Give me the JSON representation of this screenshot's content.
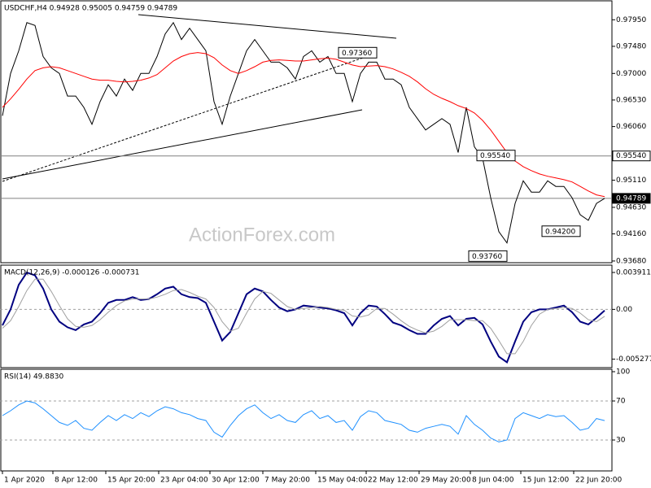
{
  "chart_data": [
    {
      "type": "line",
      "title": "USDCHF,H4  0.94928 0.95005 0.94759 0.94789",
      "watermark": "ActionForex.com",
      "x": [
        0,
        1,
        2,
        3,
        4,
        5,
        6,
        7,
        8,
        9,
        10,
        11,
        12,
        13,
        14,
        15,
        16,
        17,
        18,
        19,
        20,
        21,
        22,
        23,
        24,
        25,
        26,
        27,
        28,
        29,
        30,
        31,
        32,
        33,
        34,
        35,
        36,
        37,
        38,
        39,
        40,
        41,
        42,
        43,
        44,
        45,
        46,
        47,
        48,
        49,
        50,
        51,
        52,
        53,
        54,
        55,
        56,
        57,
        58,
        59,
        60,
        61,
        62,
        63,
        64,
        65,
        66,
        67,
        68,
        69,
        70,
        71,
        72,
        73,
        74
      ],
      "xlim": [
        -0.3,
        74.9
      ],
      "series": [
        {
          "color": "#000000",
          "values": [
            0.9625,
            0.97,
            0.974,
            0.979,
            0.9785,
            0.973,
            0.971,
            0.97,
            0.966,
            0.966,
            0.964,
            0.961,
            0.965,
            0.968,
            0.966,
            0.969,
            0.967,
            0.97,
            0.97,
            0.973,
            0.977,
            0.979,
            0.976,
            0.978,
            0.976,
            0.974,
            0.965,
            0.961,
            0.966,
            0.97,
            0.974,
            0.976,
            0.974,
            0.972,
            0.972,
            0.971,
            0.969,
            0.973,
            0.974,
            0.972,
            0.973,
            0.97,
            0.97,
            0.965,
            0.97,
            0.972,
            0.972,
            0.969,
            0.969,
            0.968,
            0.964,
            0.962,
            0.96,
            0.961,
            0.962,
            0.961,
            0.956,
            0.964,
            0.957,
            0.955,
            0.948,
            0.942,
            0.94,
            0.947,
            0.951,
            0.949,
            0.949,
            0.951,
            0.95,
            0.95,
            0.948,
            0.945,
            0.944,
            0.947,
            0.94789
          ]
        },
        {
          "color": "#ff0000",
          "values": [
            0.964,
            0.9655,
            0.9672,
            0.969,
            0.9705,
            0.971,
            0.9712,
            0.971,
            0.9705,
            0.97,
            0.9695,
            0.969,
            0.9688,
            0.9688,
            0.9686,
            0.9685,
            0.9686,
            0.9688,
            0.9692,
            0.9698,
            0.971,
            0.9722,
            0.973,
            0.9735,
            0.9737,
            0.9735,
            0.9728,
            0.9715,
            0.9705,
            0.97,
            0.9705,
            0.9712,
            0.972,
            0.9723,
            0.9724,
            0.9723,
            0.9722,
            0.9722,
            0.9724,
            0.9726,
            0.9727,
            0.9725,
            0.972,
            0.9715,
            0.9712,
            0.9713,
            0.9714,
            0.9712,
            0.9708,
            0.9702,
            0.9695,
            0.9685,
            0.9673,
            0.9663,
            0.9656,
            0.965,
            0.9643,
            0.9638,
            0.963,
            0.9617,
            0.96,
            0.958,
            0.956,
            0.9545,
            0.9535,
            0.9528,
            0.9522,
            0.9518,
            0.9515,
            0.9512,
            0.9508,
            0.95,
            0.9492,
            0.9485,
            0.9482
          ]
        }
      ],
      "ylim": [
        0.9365,
        0.983
      ],
      "yticks": [
        {
          "value": 0.9795,
          "label": "0.97950"
        },
        {
          "value": 0.9748,
          "label": "0.97480"
        },
        {
          "value": 0.97,
          "label": "0.97000"
        },
        {
          "value": 0.9653,
          "label": "0.96530"
        },
        {
          "value": 0.9606,
          "label": "0.96060"
        },
        {
          "value": 0.9511,
          "label": "0.95110"
        },
        {
          "value": 0.9463,
          "label": "0.94630"
        },
        {
          "value": 0.9416,
          "label": "0.94160"
        },
        {
          "value": 0.9368,
          "label": "0.93680"
        }
      ],
      "hlines": [
        {
          "value": 0.9554,
          "label": "0.95540"
        },
        {
          "value": 0.94789,
          "label": "0.94789"
        }
      ],
      "annotations": [
        {
          "x": 46,
          "value": 0.9736,
          "label": "0.97360"
        },
        {
          "x": 63,
          "value": 0.9554,
          "label": "0.95540"
        },
        {
          "x": 62,
          "value": 0.9376,
          "label": "0.93760"
        },
        {
          "x": 71,
          "value": 0.942,
          "label": "0.94200"
        }
      ]
    },
    {
      "type": "line",
      "title": "MACD(12,26,9) -0.000126 -0.000731",
      "series": [
        {
          "color": "#000080",
          "values": [
            -0.0017,
            0,
            0.0026,
            0.0039,
            0.0036,
            0.0022,
            0,
            -0.0013,
            -0.0019,
            -0.0022,
            -0.0016,
            -0.0013,
            -0.0004,
            0.0007,
            0.001,
            0.001,
            0.0013,
            0.001,
            0.0011,
            0.0016,
            0.0022,
            0.0024,
            0.0016,
            0.0013,
            0.0012,
            0.0007,
            -0.0013,
            -0.0033,
            -0.0024,
            -0.0004,
            0.0016,
            0.0022,
            0.0019,
            0.001,
            0.0002,
            -0.0002,
            0,
            0.0004,
            0.0003,
            0.0002,
            0.0001,
            -0.0001,
            -0.0004,
            -0.0017,
            -0.0004,
            0.0004,
            0.0003,
            -0.0005,
            -0.0014,
            -0.0017,
            -0.0022,
            -0.0026,
            -0.0026,
            -0.0017,
            -0.001,
            -0.0007,
            -0.0017,
            -0.001,
            -0.0009,
            -0.0016,
            -0.0034,
            -0.005,
            -0.0056,
            -0.0034,
            -0.0013,
            -0.0003,
            0,
            0,
            0.0002,
            0.0004,
            -0.0003,
            -0.0013,
            -0.0016,
            -0.0009,
            -0.000126
          ]
        },
        {
          "color": "#a0a0a0",
          "values": [
            -0.002,
            -0.0012,
            0.0003,
            0.002,
            0.0032,
            0.0032,
            0.0019,
            0.0004,
            -0.001,
            -0.0018,
            -0.0019,
            -0.0017,
            -0.0011,
            -0.0003,
            0.0004,
            0.0009,
            0.0011,
            0.0011,
            0.0011,
            0.0013,
            0.0016,
            0.002,
            0.0021,
            0.0018,
            0.0014,
            0.0011,
            0.0002,
            -0.0013,
            -0.0023,
            -0.002,
            -0.0004,
            0.0011,
            0.0019,
            0.0017,
            0.001,
            0.0003,
            0,
            0.0001,
            0.0002,
            0.0003,
            0.0002,
            0,
            -0.0001,
            -0.0007,
            -0.0008,
            -0.0006,
            0.0001,
            0.0001,
            -0.0005,
            -0.0012,
            -0.0018,
            -0.0022,
            -0.0025,
            -0.0023,
            -0.0018,
            -0.0011,
            -0.0011,
            -0.0011,
            -0.0012,
            -0.0012,
            -0.002,
            -0.0033,
            -0.0047,
            -0.0047,
            -0.0034,
            -0.0017,
            -0.0005,
            0,
            0.0001,
            0.0002,
            0.0001,
            -0.0004,
            -0.0011,
            -0.0013,
            -0.000731
          ]
        }
      ],
      "ylim": [
        -0.006,
        0.0046
      ],
      "yticks": [
        0.003911,
        {
          "value": 0,
          "label": "0.00"
        },
        -0.005277
      ],
      "levels": [
        0
      ]
    },
    {
      "type": "line",
      "title": "RSI(14) 49.8830",
      "series": [
        {
          "color": "#1e90ff",
          "values": [
            55,
            60,
            66,
            70,
            68,
            62,
            55,
            48,
            45,
            50,
            42,
            40,
            48,
            55,
            50,
            56,
            52,
            58,
            54,
            60,
            64,
            62,
            58,
            56,
            52,
            50,
            38,
            33,
            45,
            55,
            62,
            66,
            58,
            52,
            56,
            50,
            48,
            56,
            60,
            52,
            55,
            48,
            50,
            40,
            54,
            60,
            58,
            50,
            48,
            46,
            40,
            38,
            42,
            44,
            46,
            44,
            36,
            55,
            46,
            40,
            32,
            28,
            30,
            52,
            58,
            55,
            52,
            56,
            54,
            55,
            48,
            40,
            42,
            52,
            49.883
          ]
        }
      ],
      "ylim": [
        0,
        100
      ],
      "yticks": [
        100,
        70,
        30
      ],
      "levels": [
        70,
        30
      ],
      "xticks": [
        {
          "value": 0,
          "label": "1 Apr 2020"
        },
        {
          "value": 6.2,
          "label": "8 Apr 12:00"
        },
        {
          "value": 12.7,
          "label": "15 Apr 20:00"
        },
        {
          "value": 19.2,
          "label": "23 Apr 04:00"
        },
        {
          "value": 25.5,
          "label": "30 Apr 12:00"
        },
        {
          "value": 32,
          "label": "7 May 20:00"
        },
        {
          "value": 38.5,
          "label": "15 May 04:00"
        },
        {
          "value": 44.7,
          "label": "22 May 12:00"
        },
        {
          "value": 51.2,
          "label": "29 May 20:00"
        },
        {
          "value": 57.5,
          "label": "8 Jun 04:00"
        },
        {
          "value": 63.7,
          "label": "15 Jun 12:00"
        },
        {
          "value": 70.2,
          "label": "22 Jun 20:00"
        }
      ]
    }
  ]
}
